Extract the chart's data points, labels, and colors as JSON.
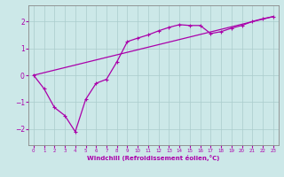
{
  "xlabel": "Windchill (Refroidissement éolien,°C)",
  "bg_color": "#cce8e8",
  "grid_color": "#aacccc",
  "line_color": "#aa00aa",
  "spine_color": "#888888",
  "xlim": [
    -0.5,
    23.5
  ],
  "ylim": [
    -2.6,
    2.6
  ],
  "xticks": [
    0,
    1,
    2,
    3,
    4,
    5,
    6,
    7,
    8,
    9,
    10,
    11,
    12,
    13,
    14,
    15,
    16,
    17,
    18,
    19,
    20,
    21,
    22,
    23
  ],
  "yticks": [
    -2,
    -1,
    0,
    1,
    2
  ],
  "line1_x": [
    0,
    1,
    2,
    3,
    4,
    5,
    6,
    7,
    8,
    9,
    10,
    11,
    12,
    13,
    14,
    15,
    16,
    17,
    18,
    19,
    20,
    21,
    22,
    23
  ],
  "line1_y": [
    0.0,
    -0.5,
    -1.2,
    -1.5,
    -2.1,
    -0.9,
    -0.3,
    -0.15,
    0.5,
    1.25,
    1.38,
    1.5,
    1.65,
    1.78,
    1.88,
    1.85,
    1.85,
    1.55,
    1.62,
    1.75,
    1.85,
    2.0,
    2.1,
    2.18
  ],
  "line2_x": [
    0,
    23
  ],
  "line2_y": [
    0.0,
    2.18
  ]
}
